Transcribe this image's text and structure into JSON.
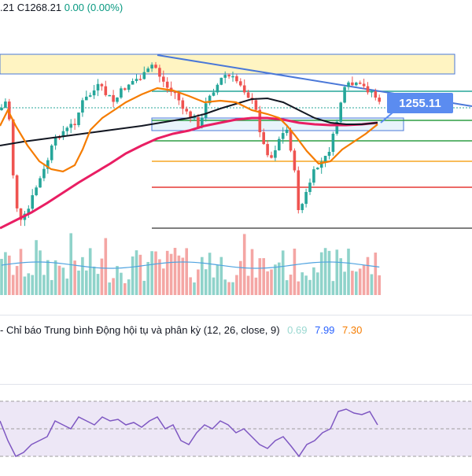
{
  "header": {
    "ohlc_prefix": ".21",
    "close_label": "C1268.21",
    "change": "0.00 (0.00%)"
  },
  "price_badge": {
    "value": "1255.11",
    "color": "#5b8cf0"
  },
  "macd": {
    "label": "- Chỉ báo Trung bình Động hội tụ và phân kỳ (12, 26, close, 9)",
    "hist_value": "0.69",
    "macd_value": "7.99",
    "signal_value": "7.30"
  },
  "colors": {
    "up": "#26a69a",
    "down": "#ef5350",
    "ma_fast": "#f57c00",
    "ma_mid": "#131722",
    "ma_slow": "#e91e63",
    "trendline": "#4a78d8",
    "zone_fill": "#fff4c2",
    "level_teal": "#26a69a",
    "level_green": "#2e9e44",
    "level_orange": "#f5a623",
    "level_red": "#e53935",
    "level_gray": "#555555",
    "rsi_line": "#7e57c2",
    "rsi_bg": "#ede7f6"
  }
}
